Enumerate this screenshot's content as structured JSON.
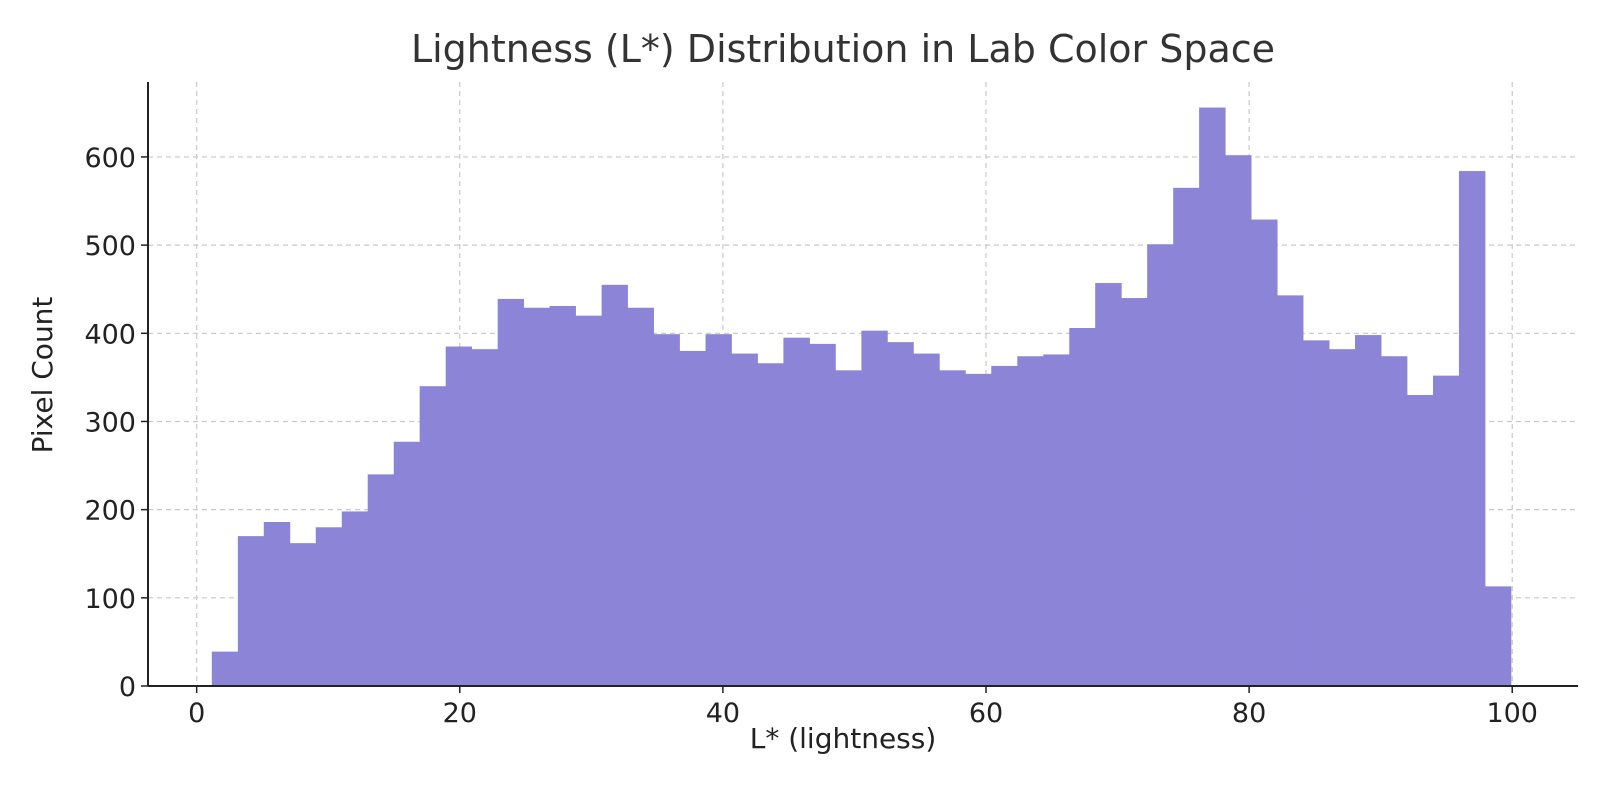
{
  "colors": {
    "bar": "#8b84d7",
    "grid": "#c8c8c8",
    "axis": "#222222",
    "title": "#333333"
  },
  "chart_data": {
    "type": "bar",
    "title": "Lightness (L*) Distribution in Lab Color Space",
    "xlabel": "L* (lightness)",
    "ylabel": "Pixel Count",
    "xlim": [
      -3.7,
      105
    ],
    "ylim": [
      0,
      685
    ],
    "xticks": [
      0,
      20,
      40,
      60,
      80,
      100
    ],
    "yticks": [
      0,
      100,
      200,
      300,
      400,
      500,
      600
    ],
    "grid": true,
    "bin_edges": [
      1.15,
      3.13,
      5.1,
      7.08,
      9.05,
      11.03,
      13.0,
      14.98,
      16.95,
      18.93,
      20.9,
      22.88,
      24.85,
      26.83,
      28.8,
      30.78,
      32.75,
      34.73,
      36.7,
      38.68,
      40.65,
      42.63,
      44.6,
      46.58,
      48.55,
      50.53,
      52.5,
      54.48,
      56.45,
      58.43,
      60.4,
      62.38,
      64.35,
      66.33,
      68.3,
      70.28,
      72.25,
      74.23,
      76.2,
      78.18,
      80.15,
      82.13,
      84.1,
      86.08,
      88.05,
      90.03,
      92.0,
      93.98,
      95.95,
      97.93,
      99.9
    ],
    "values": [
      39,
      170,
      186,
      162,
      180,
      198,
      240,
      277,
      340,
      385,
      382,
      439,
      429,
      431,
      420,
      455,
      429,
      399,
      380,
      399,
      377,
      366,
      395,
      388,
      358,
      403,
      390,
      377,
      358,
      354,
      363,
      374,
      376,
      406,
      457,
      440,
      501,
      565,
      656,
      602,
      529,
      443,
      392,
      382,
      398,
      374,
      330,
      352,
      584,
      113
    ]
  }
}
